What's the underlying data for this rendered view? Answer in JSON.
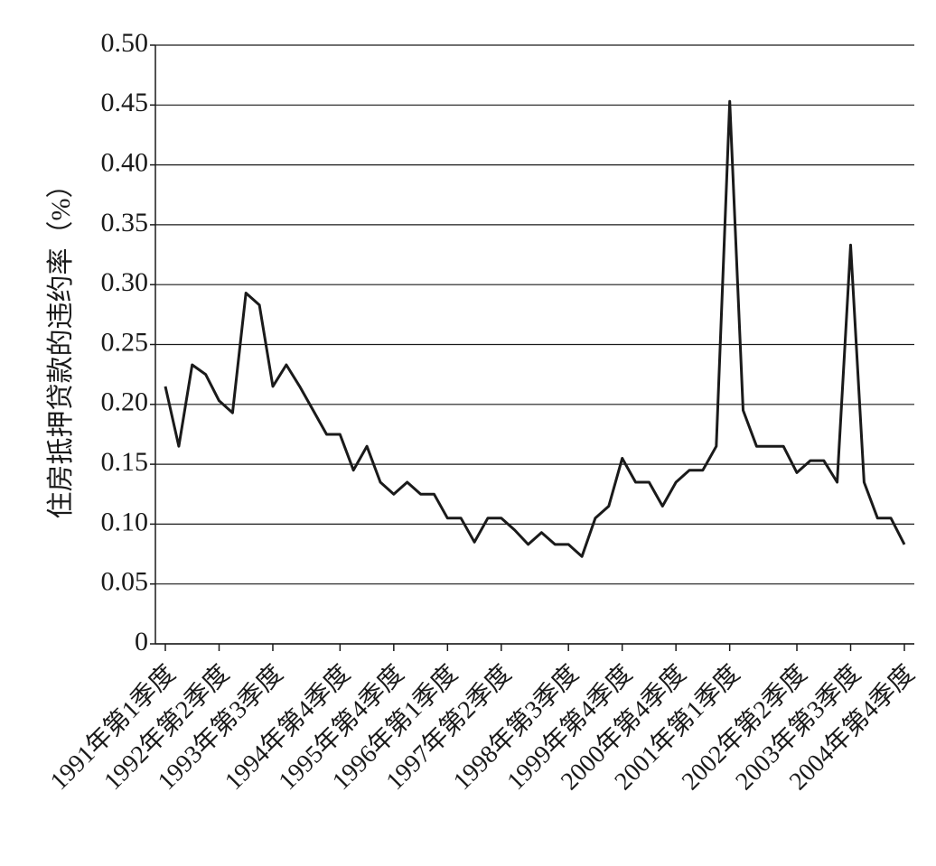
{
  "chart_data": {
    "type": "line",
    "ylabel": "住房抵押贷款的违约率（%）",
    "categories": [
      "1991年第1季度",
      null,
      null,
      null,
      "1992年第2季度",
      null,
      null,
      null,
      "1993年第3季度",
      null,
      null,
      null,
      null,
      "1994年第4季度",
      null,
      null,
      null,
      "1995年第4季度",
      null,
      null,
      null,
      "1996年第1季度",
      null,
      null,
      null,
      "1997年第2季度",
      null,
      null,
      null,
      null,
      "1998年第3季度",
      null,
      null,
      null,
      "1999年第4季度",
      null,
      null,
      null,
      "2000年第4季度",
      null,
      null,
      null,
      "2001年第1季度",
      null,
      null,
      null,
      null,
      "2002年第2季度",
      null,
      null,
      null,
      "2003年第3季度",
      null,
      null,
      null,
      "2004年第4季度"
    ],
    "series": [
      {
        "color": "#1a1a1a",
        "values": [
          0.215,
          0.165,
          0.233,
          0.225,
          0.203,
          0.193,
          0.293,
          0.283,
          0.215,
          0.233,
          0.215,
          0.195,
          0.175,
          0.175,
          0.145,
          0.165,
          0.135,
          0.125,
          0.135,
          0.125,
          0.125,
          0.105,
          0.105,
          0.085,
          0.105,
          0.105,
          0.095,
          0.083,
          0.093,
          0.083,
          0.083,
          0.073,
          0.105,
          0.115,
          0.155,
          0.135,
          0.135,
          0.115,
          0.135,
          0.145,
          0.145,
          0.165,
          0.453,
          0.195,
          0.165,
          0.165,
          0.165,
          0.143,
          0.153,
          0.153,
          0.135,
          0.333,
          0.135,
          0.105,
          0.105,
          0.083
        ]
      }
    ],
    "ylim": [
      0,
      0.5
    ],
    "yticks": [
      0,
      0.05,
      {
        "value": 0.1,
        "label": "0.10"
      },
      0.15,
      {
        "value": 0.2,
        "label": "0.20"
      },
      0.25,
      {
        "value": 0.3,
        "label": "0.30"
      },
      0.35,
      {
        "value": 0.4,
        "label": "0.40"
      },
      0.45,
      {
        "value": 0.5,
        "label": "0.50"
      }
    ],
    "grid": true
  }
}
